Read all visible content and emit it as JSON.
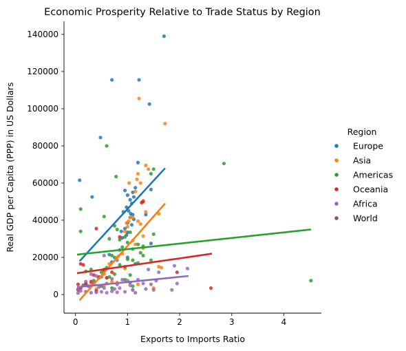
{
  "chart_data": {
    "type": "scatter",
    "title": "Economic Prosperity Relative to Trade Status by Region",
    "xlabel": "Exports to Imports Ratio",
    "ylabel": "Real GDP per Capita (PPP) in US Dollars",
    "xlim": [
      -0.22,
      4.72
    ],
    "ylim": [
      -10000,
      147000
    ],
    "xticks": [
      0,
      1,
      2,
      3,
      4
    ],
    "xtick_labels": [
      "0",
      "1",
      "2",
      "3",
      "4"
    ],
    "yticks": [
      0,
      20000,
      40000,
      60000,
      80000,
      100000,
      120000,
      140000
    ],
    "ytick_labels": [
      "0",
      "20000",
      "40000",
      "60000",
      "80000",
      "100000",
      "120000",
      "140000"
    ],
    "grid": false,
    "legend": {
      "title": "Region",
      "placement": "right"
    },
    "series": [
      {
        "name": "Europe",
        "color": "#1f77b4",
        "points": [
          [
            0.08,
            61500
          ],
          [
            0.32,
            52500
          ],
          [
            0.48,
            84500
          ],
          [
            0.7,
            115500
          ],
          [
            1.22,
            115500
          ],
          [
            1.42,
            102500
          ],
          [
            1.7,
            139000
          ],
          [
            1.2,
            71000
          ],
          [
            0.95,
            56000
          ],
          [
            1.0,
            53500
          ],
          [
            1.05,
            51000
          ],
          [
            1.1,
            55000
          ],
          [
            1.15,
            57500
          ],
          [
            1.12,
            52500
          ],
          [
            1.08,
            49000
          ],
          [
            0.98,
            47000
          ],
          [
            1.02,
            45000
          ],
          [
            1.06,
            43500
          ],
          [
            0.92,
            44500
          ],
          [
            1.1,
            43000
          ],
          [
            1.05,
            41500
          ],
          [
            1.12,
            40500
          ],
          [
            1.0,
            38500
          ],
          [
            1.08,
            37500
          ],
          [
            0.95,
            35500
          ],
          [
            0.88,
            34000
          ],
          [
            1.0,
            33500
          ],
          [
            0.98,
            32000
          ],
          [
            0.9,
            30500
          ],
          [
            1.45,
            56500
          ],
          [
            1.35,
            43000
          ],
          [
            1.45,
            27500
          ],
          [
            0.85,
            24000
          ],
          [
            1.0,
            20000
          ],
          [
            0.7,
            17500
          ],
          [
            0.65,
            21500
          ],
          [
            1.15,
            16500
          ]
        ],
        "trend": {
          "x": [
            0.08,
            1.72
          ],
          "y": [
            18000,
            68000
          ]
        }
      },
      {
        "name": "Asia",
        "color": "#ff7f0e",
        "points": [
          [
            1.72,
            92000
          ],
          [
            1.22,
            105500
          ],
          [
            1.2,
            65000
          ],
          [
            1.35,
            69500
          ],
          [
            1.4,
            67500
          ],
          [
            1.18,
            62000
          ],
          [
            1.25,
            60000
          ],
          [
            1.03,
            60000
          ],
          [
            1.15,
            55500
          ],
          [
            1.3,
            50500
          ],
          [
            1.28,
            49500
          ],
          [
            1.35,
            44500
          ],
          [
            1.6,
            43500
          ],
          [
            1.05,
            41500
          ],
          [
            1.1,
            41500
          ],
          [
            1.02,
            39500
          ],
          [
            0.98,
            38500
          ],
          [
            1.2,
            39500
          ],
          [
            1.25,
            38000
          ],
          [
            1.0,
            36500
          ],
          [
            0.95,
            34000
          ],
          [
            1.3,
            31500
          ],
          [
            1.1,
            29000
          ],
          [
            1.15,
            27000
          ],
          [
            1.3,
            25000
          ],
          [
            0.9,
            22000
          ],
          [
            0.82,
            20500
          ],
          [
            0.65,
            16500
          ],
          [
            0.95,
            14000
          ],
          [
            1.6,
            15000
          ],
          [
            1.65,
            14500
          ],
          [
            0.55,
            11000
          ],
          [
            0.6,
            9000
          ],
          [
            0.7,
            7000
          ],
          [
            0.3,
            6000
          ],
          [
            0.55,
            5000
          ],
          [
            0.8,
            6500
          ],
          [
            1.2,
            5500
          ],
          [
            1.5,
            3500
          ],
          [
            0.4,
            3000
          ],
          [
            0.2,
            1500
          ],
          [
            1.1,
            2500
          ]
        ],
        "trend": {
          "x": [
            0.08,
            1.72
          ],
          "y": [
            -3000,
            49000
          ]
        }
      },
      {
        "name": "Americas",
        "color": "#2ca02c",
        "points": [
          [
            0.6,
            80000
          ],
          [
            2.85,
            70500
          ],
          [
            4.52,
            7500
          ],
          [
            0.78,
            63500
          ],
          [
            1.5,
            67500
          ],
          [
            1.45,
            65000
          ],
          [
            0.1,
            46000
          ],
          [
            0.55,
            42000
          ],
          [
            0.1,
            34000
          ],
          [
            0.75,
            37000
          ],
          [
            0.8,
            35000
          ],
          [
            1.05,
            33500
          ],
          [
            0.95,
            31000
          ],
          [
            1.5,
            32500
          ],
          [
            0.85,
            29500
          ],
          [
            0.65,
            30000
          ],
          [
            1.0,
            28000
          ],
          [
            1.2,
            27000
          ],
          [
            1.3,
            26000
          ],
          [
            0.9,
            25500
          ],
          [
            1.1,
            24500
          ],
          [
            1.25,
            22500
          ],
          [
            1.3,
            21000
          ],
          [
            0.7,
            21000
          ],
          [
            0.75,
            20000
          ],
          [
            1.0,
            19000
          ],
          [
            1.1,
            18500
          ],
          [
            1.2,
            17000
          ],
          [
            1.45,
            18500
          ],
          [
            0.85,
            16000
          ],
          [
            0.95,
            15000
          ],
          [
            0.55,
            13500
          ],
          [
            0.6,
            14500
          ],
          [
            0.5,
            12000
          ],
          [
            0.75,
            11000
          ],
          [
            1.05,
            10500
          ],
          [
            0.65,
            9500
          ],
          [
            0.45,
            9000
          ],
          [
            0.3,
            13500
          ],
          [
            0.2,
            12500
          ],
          [
            0.95,
            8000
          ],
          [
            1.05,
            6500
          ],
          [
            0.35,
            7500
          ],
          [
            0.2,
            5500
          ],
          [
            0.5,
            4500
          ],
          [
            0.7,
            3500
          ],
          [
            1.1,
            4500
          ]
        ],
        "trend": {
          "x": [
            0.03,
            4.52
          ],
          "y": [
            21500,
            35000
          ]
        }
      },
      {
        "name": "Oceania",
        "color": "#d62728",
        "points": [
          [
            1.3,
            50000
          ],
          [
            1.27,
            49500
          ],
          [
            0.85,
            31000
          ],
          [
            0.4,
            35500
          ],
          [
            0.1,
            16500
          ],
          [
            0.15,
            16000
          ],
          [
            0.55,
            13000
          ],
          [
            0.7,
            12000
          ],
          [
            0.35,
            10500
          ],
          [
            0.45,
            9500
          ],
          [
            0.3,
            7000
          ],
          [
            0.2,
            6000
          ],
          [
            0.15,
            5000
          ],
          [
            0.05,
            5500
          ],
          [
            0.1,
            3500
          ],
          [
            0.05,
            2500
          ],
          [
            0.25,
            4500
          ],
          [
            0.35,
            5500
          ],
          [
            0.6,
            9000
          ],
          [
            1.95,
            12000
          ],
          [
            2.6,
            3500
          ],
          [
            0.4,
            2000
          ]
        ],
        "trend": {
          "x": [
            0.03,
            2.62
          ],
          "y": [
            11500,
            22000
          ]
        }
      },
      {
        "name": "Africa",
        "color": "#9467bd",
        "points": [
          [
            0.55,
            21000
          ],
          [
            0.8,
            18500
          ],
          [
            0.6,
            14000
          ],
          [
            1.9,
            15500
          ],
          [
            2.15,
            14000
          ],
          [
            1.4,
            13500
          ],
          [
            1.6,
            12000
          ],
          [
            0.3,
            11000
          ],
          [
            0.4,
            10000
          ],
          [
            0.5,
            9500
          ],
          [
            0.7,
            8500
          ],
          [
            0.9,
            8000
          ],
          [
            1.0,
            7500
          ],
          [
            1.2,
            8000
          ],
          [
            1.55,
            7500
          ],
          [
            0.2,
            7000
          ],
          [
            0.35,
            6500
          ],
          [
            0.6,
            6000
          ],
          [
            0.8,
            5500
          ],
          [
            1.05,
            5000
          ],
          [
            1.3,
            6000
          ],
          [
            1.45,
            5500
          ],
          [
            0.15,
            5000
          ],
          [
            0.25,
            4500
          ],
          [
            0.45,
            4000
          ],
          [
            0.55,
            3500
          ],
          [
            0.75,
            3000
          ],
          [
            0.85,
            3500
          ],
          [
            1.1,
            2500
          ],
          [
            1.35,
            3000
          ],
          [
            1.5,
            2500
          ],
          [
            1.95,
            6000
          ],
          [
            0.05,
            3000
          ],
          [
            0.1,
            2000
          ],
          [
            0.2,
            1500
          ],
          [
            0.3,
            1000
          ],
          [
            0.4,
            1200
          ],
          [
            0.5,
            1500
          ],
          [
            0.6,
            1000
          ],
          [
            0.7,
            1800
          ],
          [
            0.8,
            1200
          ],
          [
            1.15,
            1000
          ],
          [
            0.95,
            1500
          ],
          [
            0.05,
            800
          ],
          [
            1.85,
            2500
          ]
        ],
        "trend": {
          "x": [
            0.03,
            2.17
          ],
          "y": [
            4000,
            10000
          ]
        }
      },
      {
        "name": "World",
        "color": "#8c564b",
        "points": [],
        "trend": null
      }
    ]
  }
}
